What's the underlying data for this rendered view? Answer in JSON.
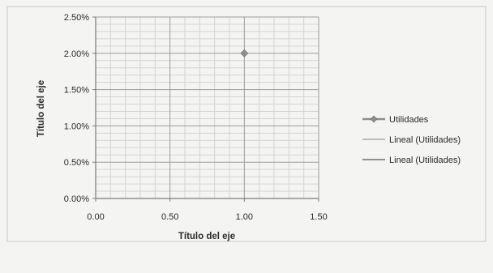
{
  "chart_data": {
    "type": "scatter",
    "xlabel": "Título del eje",
    "ylabel": "Título del eje",
    "xlim": [
      0,
      1.5
    ],
    "ylim": [
      0,
      0.025
    ],
    "x_ticks": [
      {
        "value": 0,
        "label": "0.00"
      },
      {
        "value": 0.5,
        "label": "0.50"
      },
      {
        "value": 1.0,
        "label": "1.00"
      },
      {
        "value": 1.5,
        "label": "1.50"
      }
    ],
    "y_ticks": [
      {
        "value": 0,
        "label": "0.00%"
      },
      {
        "value": 0.005,
        "label": "0.50%"
      },
      {
        "value": 0.01,
        "label": "1.00%"
      },
      {
        "value": 0.015,
        "label": "1.50%"
      },
      {
        "value": 0.02,
        "label": "2.00%"
      },
      {
        "value": 0.025,
        "label": "2.50%"
      }
    ],
    "grid": true,
    "legend_position": "right",
    "series": [
      {
        "name": "Utilidades",
        "kind": "marker-line",
        "color": "#8e8e8e",
        "points": [
          {
            "x": 1.0,
            "y": 0.02
          }
        ]
      },
      {
        "name": "Lineal (Utilidades)",
        "kind": "trendline",
        "color": "#9a9a9a",
        "points": []
      },
      {
        "name": "Lineal (Utilidades)",
        "kind": "trendline",
        "color": "#555555",
        "points": []
      }
    ],
    "colors": {
      "background": "#f4f4f2",
      "major_grid": "#9c9c9c",
      "minor_grid": "#d4d4d4",
      "axis": "#7a7a7a",
      "frame": "#c8c8c8"
    }
  }
}
